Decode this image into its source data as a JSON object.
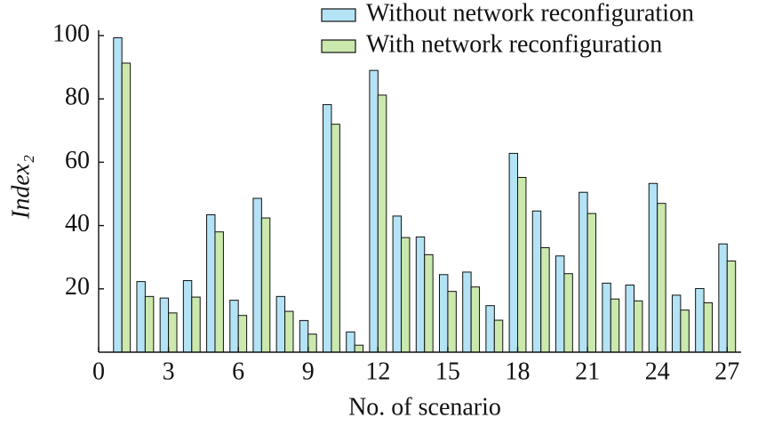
{
  "chart_data": {
    "type": "bar",
    "xlabel": "No. of scenario",
    "ylabel": "Index₂",
    "x": [
      1,
      2,
      3,
      4,
      5,
      6,
      7,
      8,
      9,
      10,
      11,
      12,
      13,
      14,
      15,
      16,
      17,
      18,
      19,
      20,
      21,
      22,
      23,
      24,
      25,
      26,
      27
    ],
    "series": [
      {
        "name": "Without network reconfiguration",
        "color": "#b3e3f5",
        "values": [
          99.3,
          22.3,
          17.1,
          22.6,
          43.4,
          16.4,
          48.6,
          17.6,
          10.0,
          78.2,
          6.4,
          89.0,
          43.0,
          36.4,
          24.5,
          25.3,
          14.7,
          62.8,
          44.6,
          30.4,
          50.5,
          21.8,
          21.2,
          53.3,
          18.0,
          20.1,
          34.2
        ]
      },
      {
        "name": "With network reconfiguration",
        "color": "#cbe8ad",
        "values": [
          91.3,
          17.6,
          12.4,
          17.4,
          38.0,
          11.6,
          42.4,
          12.9,
          5.7,
          72.0,
          2.2,
          81.2,
          36.2,
          30.8,
          19.2,
          20.6,
          10.1,
          55.2,
          33.0,
          24.8,
          43.8,
          16.8,
          16.2,
          47.0,
          13.3,
          15.6,
          28.8
        ]
      }
    ],
    "xlim": [
      0,
      27.6
    ],
    "xticks": [
      0,
      3,
      6,
      9,
      12,
      15,
      18,
      21,
      24,
      27
    ],
    "ylim": [
      0,
      100
    ],
    "yticks": [
      20,
      40,
      60,
      80,
      100
    ],
    "legend": "upper right"
  }
}
